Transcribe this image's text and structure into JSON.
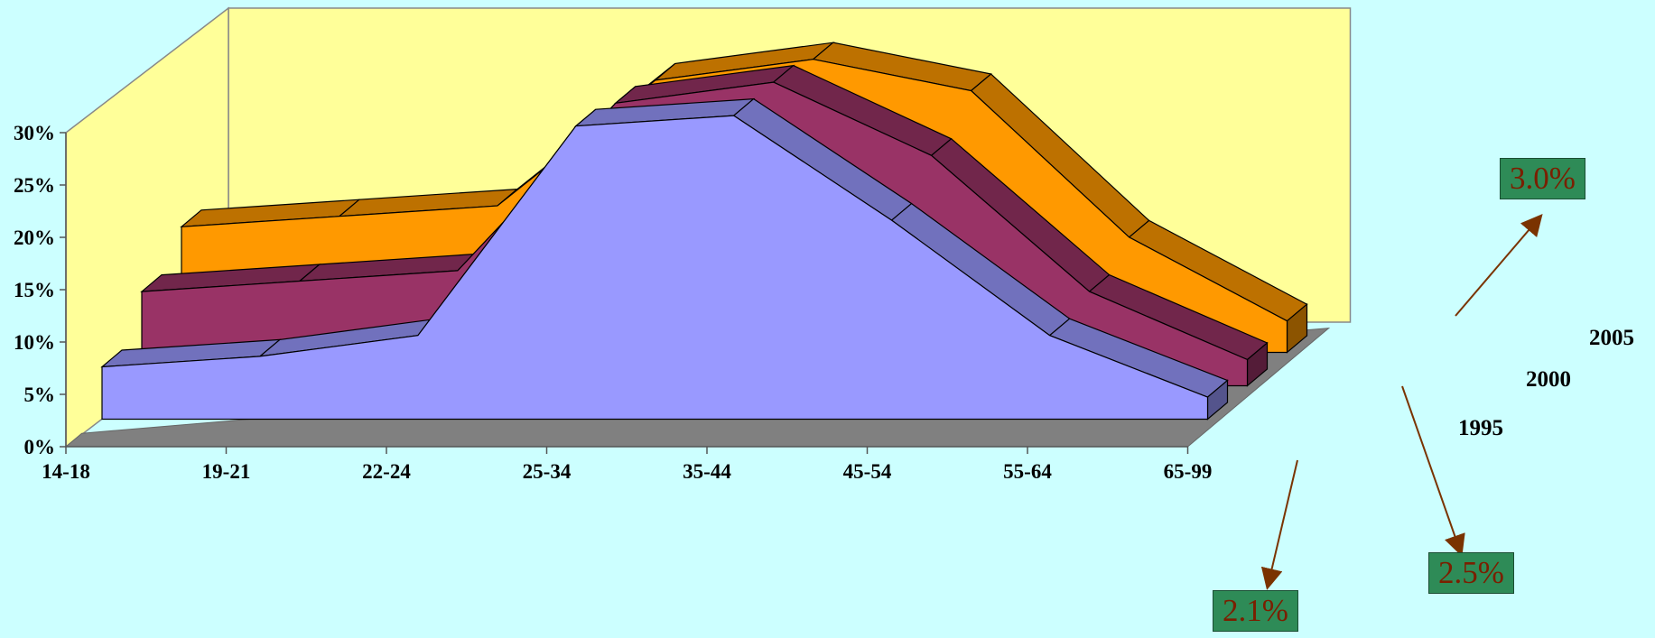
{
  "chart_data": {
    "type": "area",
    "categories": [
      "14-18",
      "19-21",
      "22-24",
      "25-34",
      "35-44",
      "45-54",
      "55-64",
      "65-99"
    ],
    "series": [
      {
        "name": "1995",
        "values": [
          5,
          6,
          8,
          28,
          29,
          19,
          8,
          2.1
        ],
        "color": "#9999ff"
      },
      {
        "name": "2000",
        "values": [
          9,
          10,
          11,
          27,
          29,
          22,
          9,
          2.5
        ],
        "color": "#993366"
      },
      {
        "name": "2005",
        "values": [
          12,
          13,
          14,
          26,
          28,
          25,
          11,
          3.0
        ],
        "color": "#ff9900"
      }
    ],
    "ylim": [
      0,
      30
    ],
    "yticks": [
      "0%",
      "5%",
      "10%",
      "15%",
      "20%",
      "25%",
      "30%"
    ],
    "callouts": [
      {
        "series": "1995",
        "text": "2.1%"
      },
      {
        "series": "2000",
        "text": "2.5%"
      },
      {
        "series": "2005",
        "text": "3.0%"
      }
    ],
    "colors": {
      "background": "#ccffff",
      "wall": "#ffff99",
      "floor": "#808080",
      "callout_box": "#2e8b57",
      "callout_text": "#7a1f00",
      "arrow": "#7a3300"
    }
  }
}
